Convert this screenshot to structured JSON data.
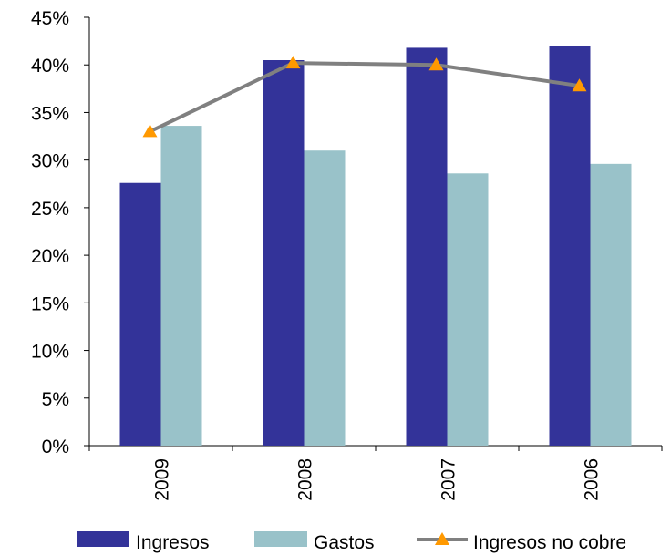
{
  "chart_data": {
    "type": "bar",
    "categories": [
      "2009",
      "2008",
      "2007",
      "2006"
    ],
    "series": [
      {
        "name": "Ingresos",
        "kind": "bar",
        "color": "#333399",
        "values": [
          27.6,
          40.5,
          41.8,
          42.0
        ]
      },
      {
        "name": "Gastos",
        "kind": "bar",
        "color": "#99c2c9",
        "values": [
          33.6,
          31.0,
          28.6,
          29.6
        ]
      },
      {
        "name": "Ingresos no cobre",
        "kind": "line",
        "color": "#808080",
        "marker": "triangle",
        "marker_color": "#ff9900",
        "values": [
          33.0,
          40.2,
          40.0,
          37.8
        ]
      }
    ],
    "y_ticks": [
      "0%",
      "5%",
      "10%",
      "15%",
      "20%",
      "25%",
      "30%",
      "35%",
      "40%",
      "45%"
    ],
    "ylim": [
      0,
      45
    ],
    "grid": false,
    "legend_position": "bottom"
  }
}
